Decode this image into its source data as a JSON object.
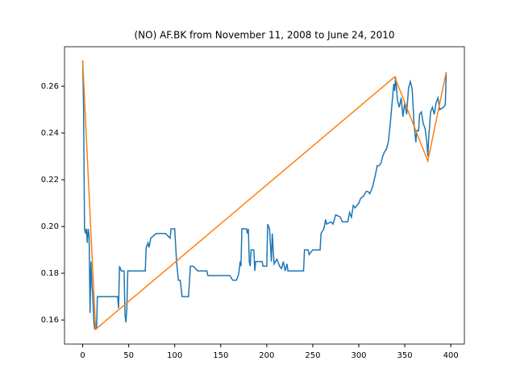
{
  "chart_data": {
    "type": "line",
    "title": "(NO) AF.BK from November 11, 2008 to June 24, 2010",
    "xlim": [
      -19.75,
      414.75
    ],
    "ylim": [
      0.1497,
      0.2769
    ],
    "xticks": [
      0,
      50,
      100,
      150,
      200,
      250,
      300,
      350,
      400
    ],
    "yticks": [
      0.16,
      0.18,
      {
        "value": 0.2,
        "label": "0.20"
      },
      0.22,
      0.24,
      0.26
    ],
    "series": [
      {
        "color": "#1f77b4",
        "x": [
          0,
          1,
          2,
          3,
          4,
          5,
          6,
          7,
          8,
          9,
          10,
          11,
          12,
          13,
          14,
          15,
          16,
          20,
          30,
          38,
          39,
          40,
          42,
          45,
          46,
          47,
          48,
          49,
          60,
          68,
          69,
          71,
          72,
          74,
          80,
          90,
          95,
          96,
          100,
          102,
          104,
          106,
          108,
          110,
          115,
          117,
          120,
          125,
          135,
          136,
          150,
          160,
          163,
          167,
          169,
          170,
          171,
          172,
          173,
          178,
          179,
          180,
          181,
          182,
          183,
          186,
          187,
          188,
          195,
          196,
          200,
          201,
          203,
          205,
          206,
          207,
          208,
          211,
          214,
          216,
          218,
          220,
          222,
          223,
          240,
          241,
          245,
          246,
          250,
          258,
          259,
          262,
          264,
          265,
          270,
          272,
          275,
          280,
          282,
          288,
          290,
          292,
          294,
          296,
          300,
          302,
          305,
          308,
          310,
          312,
          315,
          318,
          320,
          322,
          324,
          326,
          328,
          330,
          332,
          334,
          336,
          338,
          339,
          340,
          342,
          344,
          346,
          348,
          350,
          352,
          354,
          356,
          358,
          360,
          362,
          363,
          365,
          366,
          368,
          370,
          372,
          374,
          375,
          376,
          378,
          380,
          382,
          384,
          386,
          388,
          392,
          394,
          395
        ],
        "values": [
          0.271,
          0.25,
          0.199,
          0.197,
          0.199,
          0.193,
          0.199,
          0.196,
          0.163,
          0.185,
          0.175,
          0.17,
          0.16,
          0.156,
          0.159,
          0.156,
          0.17,
          0.17,
          0.17,
          0.17,
          0.165,
          0.183,
          0.181,
          0.181,
          0.162,
          0.159,
          0.165,
          0.181,
          0.181,
          0.181,
          0.191,
          0.193,
          0.191,
          0.195,
          0.197,
          0.197,
          0.195,
          0.199,
          0.199,
          0.185,
          0.177,
          0.177,
          0.17,
          0.17,
          0.17,
          0.183,
          0.183,
          0.181,
          0.181,
          0.179,
          0.179,
          0.179,
          0.177,
          0.177,
          0.179,
          0.181,
          0.185,
          0.183,
          0.199,
          0.199,
          0.197,
          0.199,
          0.185,
          0.183,
          0.19,
          0.19,
          0.181,
          0.185,
          0.185,
          0.183,
          0.183,
          0.201,
          0.199,
          0.185,
          0.197,
          0.19,
          0.184,
          0.186,
          0.183,
          0.182,
          0.185,
          0.181,
          0.184,
          0.181,
          0.181,
          0.19,
          0.19,
          0.188,
          0.19,
          0.19,
          0.197,
          0.199,
          0.203,
          0.201,
          0.202,
          0.201,
          0.205,
          0.204,
          0.202,
          0.202,
          0.206,
          0.204,
          0.209,
          0.208,
          0.21,
          0.212,
          0.213,
          0.215,
          0.215,
          0.214,
          0.217,
          0.222,
          0.226,
          0.226,
          0.227,
          0.23,
          0.232,
          0.233,
          0.236,
          0.243,
          0.252,
          0.261,
          0.258,
          0.264,
          0.254,
          0.251,
          0.255,
          0.247,
          0.253,
          0.248,
          0.259,
          0.262,
          0.259,
          0.244,
          0.236,
          0.241,
          0.241,
          0.248,
          0.249,
          0.244,
          0.242,
          0.236,
          0.23,
          0.238,
          0.249,
          0.251,
          0.248,
          0.253,
          0.255,
          0.25,
          0.251,
          0.252,
          0.266
        ]
      },
      {
        "color": "#ff7f0e",
        "x": [
          0,
          14,
          339,
          375,
          395
        ],
        "values": [
          0.271,
          0.156,
          0.264,
          0.228,
          0.266
        ]
      }
    ]
  }
}
